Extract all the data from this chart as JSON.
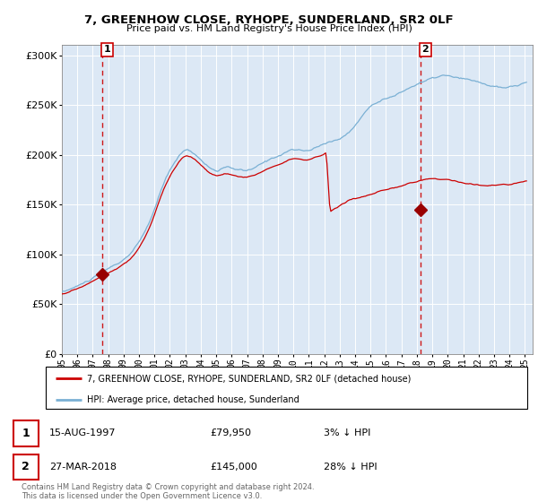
{
  "title": "7, GREENHOW CLOSE, RYHOPE, SUNDERLAND, SR2 0LF",
  "subtitle": "Price paid vs. HM Land Registry's House Price Index (HPI)",
  "legend_line1": "7, GREENHOW CLOSE, RYHOPE, SUNDERLAND, SR2 0LF (detached house)",
  "legend_line2": "HPI: Average price, detached house, Sunderland",
  "annotation1_date": "15-AUG-1997",
  "annotation1_price": "£79,950",
  "annotation1_hpi": "3% ↓ HPI",
  "annotation2_date": "27-MAR-2018",
  "annotation2_price": "£145,000",
  "annotation2_hpi": "28% ↓ HPI",
  "copyright": "Contains HM Land Registry data © Crown copyright and database right 2024.\nThis data is licensed under the Open Government Licence v3.0.",
  "hpi_color": "#7ab0d4",
  "price_color": "#cc0000",
  "dot_color": "#990000",
  "dashed_color": "#cc0000",
  "background_color": "#dce8f5",
  "ylim": [
    0,
    310000
  ],
  "yticks": [
    0,
    50000,
    100000,
    150000,
    200000,
    250000,
    300000
  ],
  "sale1_x": 1997.62,
  "sale1_y": 79950,
  "sale2_x": 2018.23,
  "sale2_y": 145000,
  "xtick_years": [
    1995,
    1996,
    1997,
    1998,
    1999,
    2000,
    2001,
    2002,
    2003,
    2004,
    2005,
    2006,
    2007,
    2008,
    2009,
    2010,
    2011,
    2012,
    2013,
    2014,
    2015,
    2016,
    2017,
    2018,
    2019,
    2020,
    2021,
    2022,
    2023,
    2024,
    2025
  ]
}
